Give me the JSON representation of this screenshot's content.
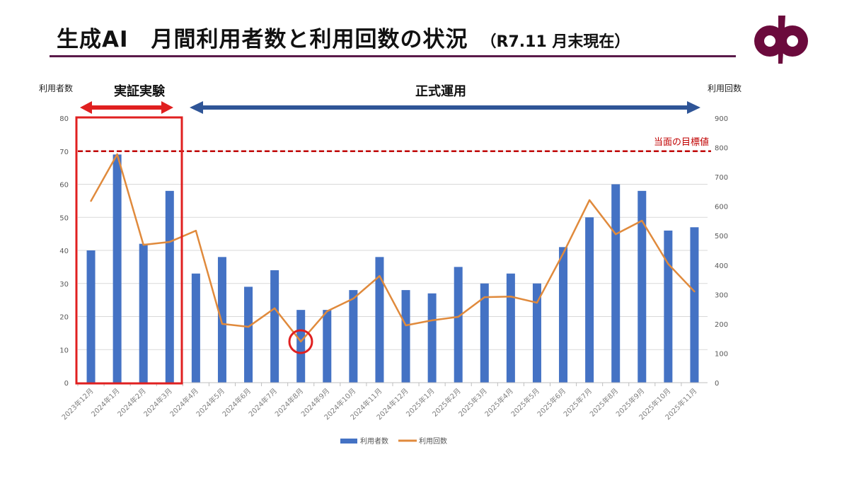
{
  "header": {
    "title": "生成AI　月間利用者数と利用回数の状況",
    "subtitle": "（R7.11 月末現在）",
    "logo": "purple-logo-mark"
  },
  "annotations": {
    "trial_label": "実証実験",
    "production_label": "正式運用",
    "target_label": "当面の目標値",
    "low_point_marker": "2024年8月"
  },
  "colors": {
    "bars": "#4472c4",
    "line": "#e08a3c",
    "highlight": "#e02020",
    "production_arrow": "#2f5597",
    "target_line": "#c00000",
    "title_rule": "#5a1a4a",
    "logo": "#6b0a3c"
  },
  "chart_data": {
    "type": "bar+line",
    "categories": [
      "2023年12月",
      "2024年1月",
      "2024年2月",
      "2024年3月",
      "2024年4月",
      "2024年5月",
      "2024年6月",
      "2024年7月",
      "2024年8月",
      "2024年9月",
      "2024年10月",
      "2024年11月",
      "2024年12月",
      "2025年1月",
      "2025年2月",
      "2025年3月",
      "2025年4月",
      "2025年5月",
      "2025年6月",
      "2025年7月",
      "2025年8月",
      "2025年9月",
      "2025年10月",
      "2025年11月"
    ],
    "series": [
      {
        "name": "利用者数",
        "type": "bar",
        "axis": "left",
        "values": [
          40,
          69,
          42,
          58,
          33,
          38,
          29,
          34,
          22,
          22,
          28,
          38,
          28,
          27,
          35,
          30,
          33,
          30,
          41,
          50,
          60,
          58,
          46,
          47
        ]
      },
      {
        "name": "利用回数",
        "type": "line",
        "axis": "right",
        "values": [
          618,
          777,
          469,
          479,
          517,
          200,
          190,
          253,
          140,
          243,
          286,
          363,
          195,
          212,
          224,
          291,
          293,
          272,
          440,
          621,
          505,
          551,
          404,
          310
        ]
      }
    ],
    "ylabel_left": "利用者数",
    "ylabel_right": "利用回数",
    "ylim_left": [
      0,
      80
    ],
    "ylim_right": [
      0,
      900
    ],
    "yticks_left": [
      0,
      10,
      20,
      30,
      40,
      50,
      60,
      70,
      80
    ],
    "yticks_right": [
      0,
      100,
      200,
      300,
      400,
      500,
      600,
      700,
      800,
      900
    ],
    "target_left_value": 70,
    "grid": true,
    "legend": "bottom"
  }
}
